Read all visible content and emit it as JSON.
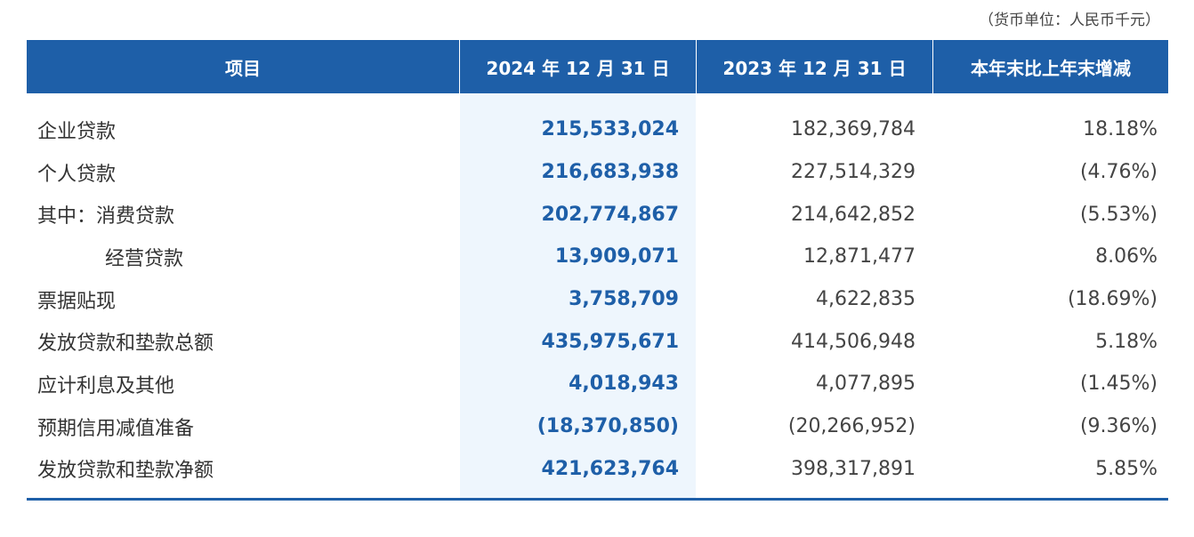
{
  "unit_note": "（货币单位：人民币千元）",
  "header": {
    "item": "项目",
    "col_2024": "2024 年 12 月 31 日",
    "col_2023": "2023 年 12 月 31 日",
    "col_change": "本年末比上年末增减"
  },
  "rows": [
    {
      "label": "企业贷款",
      "v2024": "215,533,024",
      "v2023": "182,369,784",
      "change": "18.18%"
    },
    {
      "label": "个人贷款",
      "v2024": "216,683,938",
      "v2023": "227,514,329",
      "change": "(4.76%)"
    },
    {
      "label": "其中：消费贷款",
      "v2024": "202,774,867",
      "v2023": "214,642,852",
      "change": "(5.53%)"
    },
    {
      "label": "经营贷款",
      "v2024": "13,909,071",
      "v2023": "12,871,477",
      "change": "8.06%"
    },
    {
      "label": "票据贴现",
      "v2024": "3,758,709",
      "v2023": "4,622,835",
      "change": "(18.69%)"
    },
    {
      "label": "发放贷款和垫款总额",
      "v2024": "435,975,671",
      "v2023": "414,506,948",
      "change": "5.18%"
    },
    {
      "label": "应计利息及其他",
      "v2024": "4,018,943",
      "v2023": "4,077,895",
      "change": "(1.45%)"
    },
    {
      "label": "预期信用减值准备",
      "v2024": "(18,370,850)",
      "v2023": "(20,266,952)",
      "change": "(9.36%)"
    },
    {
      "label": "发放贷款和垫款净额",
      "v2024": "421,623,764",
      "v2023": "398,317,891",
      "change": "5.85%"
    }
  ]
}
